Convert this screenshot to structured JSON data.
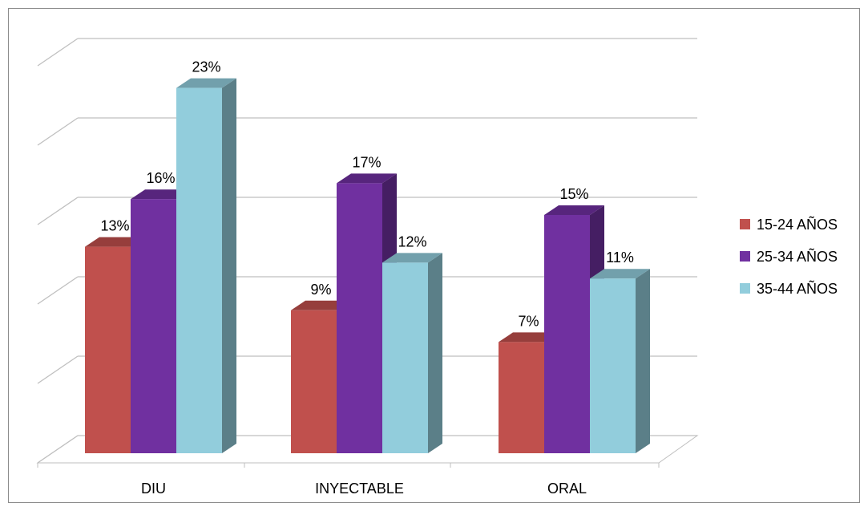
{
  "chart_data": {
    "type": "bar",
    "categories": [
      "DIU",
      "INYECTABLE",
      "ORAL"
    ],
    "series": [
      {
        "name": "15-24 AÑOS",
        "color": "#c0504d",
        "values": [
          13,
          9,
          7
        ],
        "labels": [
          "13%",
          "9%",
          "7%"
        ]
      },
      {
        "name": "25-34 AÑOS",
        "color": "#7030a0",
        "values": [
          16,
          17,
          15
        ],
        "labels": [
          "16%",
          "17%",
          "15%"
        ]
      },
      {
        "name": "35-44 AÑOS",
        "color": "#92cddc",
        "values": [
          23,
          12,
          11
        ],
        "labels": [
          "23%",
          "12%",
          "11%"
        ]
      }
    ],
    "ylim": [
      0,
      25
    ],
    "grid": true,
    "legend": "right",
    "style": "3d-clustered-column"
  }
}
